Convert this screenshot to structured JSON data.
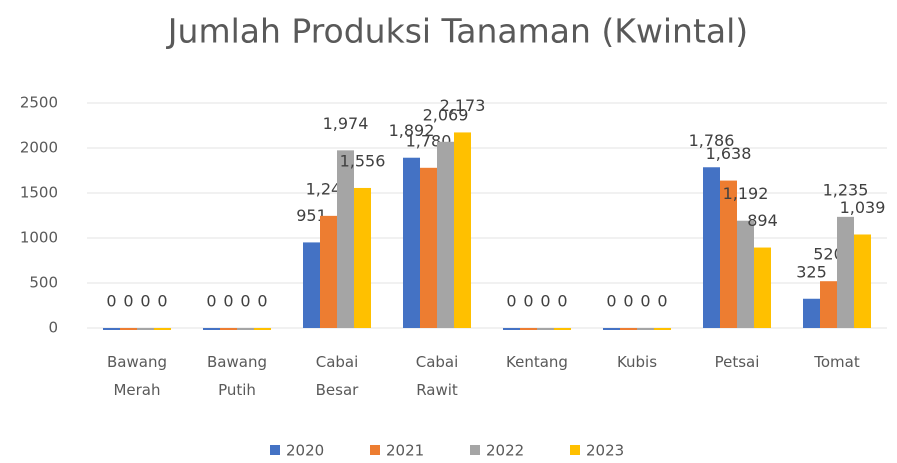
{
  "chart_data": {
    "type": "bar",
    "title": "Jumlah Produksi Tanaman (Kwintal)",
    "categories": [
      "Bawang Merah",
      "Bawang Putih",
      "Cabai Besar",
      "Cabai Rawit",
      "Kentang",
      "Kubis",
      "Petsai",
      "Tomat"
    ],
    "series": [
      {
        "name": "2020",
        "color": "#4472c4",
        "values": [
          0,
          0,
          951,
          1892,
          0,
          0,
          1786,
          325
        ],
        "value_labels": [
          "0",
          "0",
          "951",
          "1,892",
          "0",
          "0",
          "1,786",
          "325"
        ]
      },
      {
        "name": "2021",
        "color": "#ed7d31",
        "values": [
          0,
          0,
          1246,
          1780,
          0,
          0,
          1638,
          520
        ],
        "value_labels": [
          "0",
          "0",
          "1,246",
          "1,780",
          "0",
          "0",
          "1,638",
          "520"
        ]
      },
      {
        "name": "2022",
        "color": "#a5a5a5",
        "values": [
          0,
          0,
          1974,
          2069,
          0,
          0,
          1192,
          1235
        ],
        "value_labels": [
          "0",
          "0",
          "1,974",
          "2,069",
          "0",
          "0",
          "1,192",
          "1,235"
        ]
      },
      {
        "name": "2023",
        "color": "#ffc000",
        "values": [
          0,
          0,
          1556,
          2173,
          0,
          0,
          894,
          1039
        ],
        "value_labels": [
          "0",
          "0",
          "1,556",
          "2,173",
          "0",
          "0",
          "894",
          "1,039"
        ]
      }
    ],
    "ylim": [
      0,
      2500
    ],
    "yticks": [
      0,
      500,
      1000,
      1500,
      2000,
      2500
    ],
    "grid": true,
    "legend": "bottom"
  }
}
